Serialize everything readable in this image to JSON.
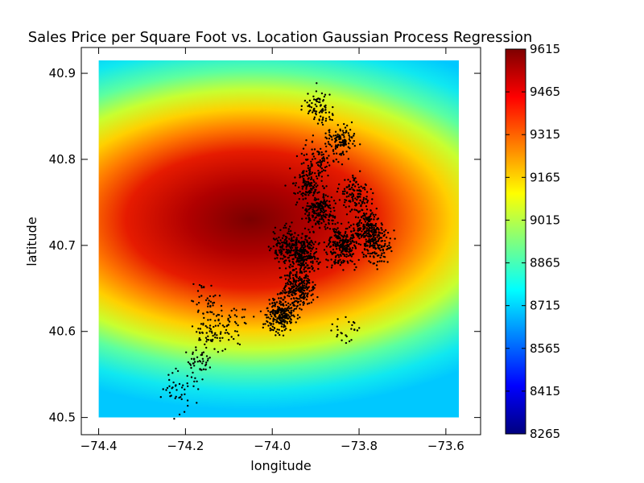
{
  "chart_data": {
    "type": "heatmap",
    "title": "Sales Price per Square Foot vs. Location Gaussian Process Regression",
    "xlabel": "longitude",
    "ylabel": "latitude",
    "xlim": [
      -74.44,
      -73.52
    ],
    "ylim": [
      40.48,
      40.93
    ],
    "x_ticks": [
      -74.4,
      -74.2,
      -74.0,
      -73.8,
      -73.6
    ],
    "x_tick_labels": [
      "−74.4",
      "−74.2",
      "−74.0",
      "−73.8",
      "−73.6"
    ],
    "y_ticks": [
      40.5,
      40.6,
      40.7,
      40.8,
      40.9
    ],
    "y_tick_labels": [
      "40.5",
      "40.6",
      "40.7",
      "40.8",
      "40.9"
    ],
    "surface": {
      "extent_lon": [
        -74.4,
        -73.57
      ],
      "extent_lat": [
        40.5,
        40.915
      ],
      "peak_lon": -74.05,
      "peak_lat": 40.73,
      "peak_value": 9615,
      "edge_value": 8720,
      "colormap": "jet"
    },
    "colorbar": {
      "min": 8265,
      "max": 9615,
      "ticks": [
        8265,
        8415,
        8565,
        8715,
        8865,
        9015,
        9165,
        9315,
        9465,
        9615
      ],
      "tick_labels": [
        "8265",
        "8415",
        "8565",
        "8715",
        "8865",
        "9015",
        "9165",
        "9315",
        "9465",
        "9615"
      ]
    },
    "scatter": {
      "color": "#000000",
      "clusters": [
        {
          "lon": -74.22,
          "lat": 40.53,
          "n": 40
        },
        {
          "lon": -74.14,
          "lat": 40.59,
          "n": 60
        },
        {
          "lon": -74.15,
          "lat": 40.63,
          "n": 50
        },
        {
          "lon": -74.09,
          "lat": 40.61,
          "n": 40
        },
        {
          "lon": -74.18,
          "lat": 40.56,
          "n": 40
        },
        {
          "lon": -73.98,
          "lat": 40.62,
          "n": 240
        },
        {
          "lon": -73.94,
          "lat": 40.65,
          "n": 240
        },
        {
          "lon": -73.93,
          "lat": 40.69,
          "n": 280
        },
        {
          "lon": -73.97,
          "lat": 40.7,
          "n": 140
        },
        {
          "lon": -73.84,
          "lat": 40.7,
          "n": 240
        },
        {
          "lon": -73.78,
          "lat": 40.72,
          "n": 200
        },
        {
          "lon": -73.76,
          "lat": 40.7,
          "n": 140
        },
        {
          "lon": -73.89,
          "lat": 40.74,
          "n": 200
        },
        {
          "lon": -73.92,
          "lat": 40.77,
          "n": 120
        },
        {
          "lon": -73.84,
          "lat": 40.82,
          "n": 120
        },
        {
          "lon": -73.89,
          "lat": 40.86,
          "n": 80
        },
        {
          "lon": -73.9,
          "lat": 40.8,
          "n": 80
        },
        {
          "lon": -73.81,
          "lat": 40.76,
          "n": 120
        },
        {
          "lon": -73.83,
          "lat": 40.6,
          "n": 25
        }
      ]
    }
  }
}
